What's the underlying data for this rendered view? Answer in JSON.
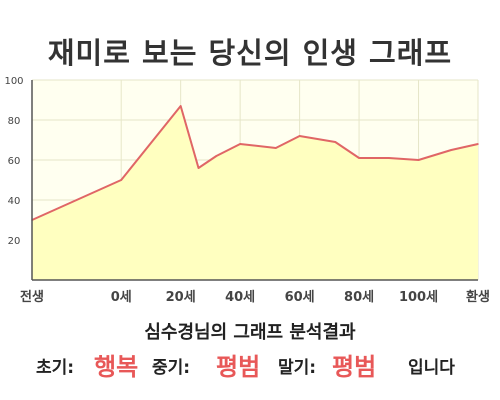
{
  "title": "재미로 보는 당신의 인생 그래프",
  "chart_data": {
    "type": "area",
    "title": "재미로 보는 당신의 인생 그래프",
    "x_tick_labels": [
      "전생",
      "0세",
      "20세",
      "40세",
      "60세",
      "80세",
      "100세",
      "환생"
    ],
    "y_ticks": [
      20,
      40,
      60,
      80,
      100
    ],
    "ylim": [
      0,
      100
    ],
    "grid": true,
    "series": [
      {
        "x": [
          -30,
          0,
          20,
          26,
          32,
          40,
          52,
          60,
          72,
          80,
          90,
          100,
          111,
          120
        ],
        "values": [
          30,
          50,
          87,
          56,
          62,
          68,
          66,
          72,
          69,
          61,
          61,
          60,
          65,
          68
        ]
      }
    ],
    "colors": {
      "line": "#e06666",
      "fill": "#ffffc0",
      "plot_bg": "#fffff0",
      "grid": "#e6e6c8"
    }
  },
  "result": {
    "heading": "심수경님의 그래프 분석결과",
    "early_label": "초기:",
    "early_value": "행복",
    "middle_label": "중기:",
    "middle_value": "평범",
    "late_label": "말기:",
    "late_value": "평범",
    "ending": "입니다"
  }
}
